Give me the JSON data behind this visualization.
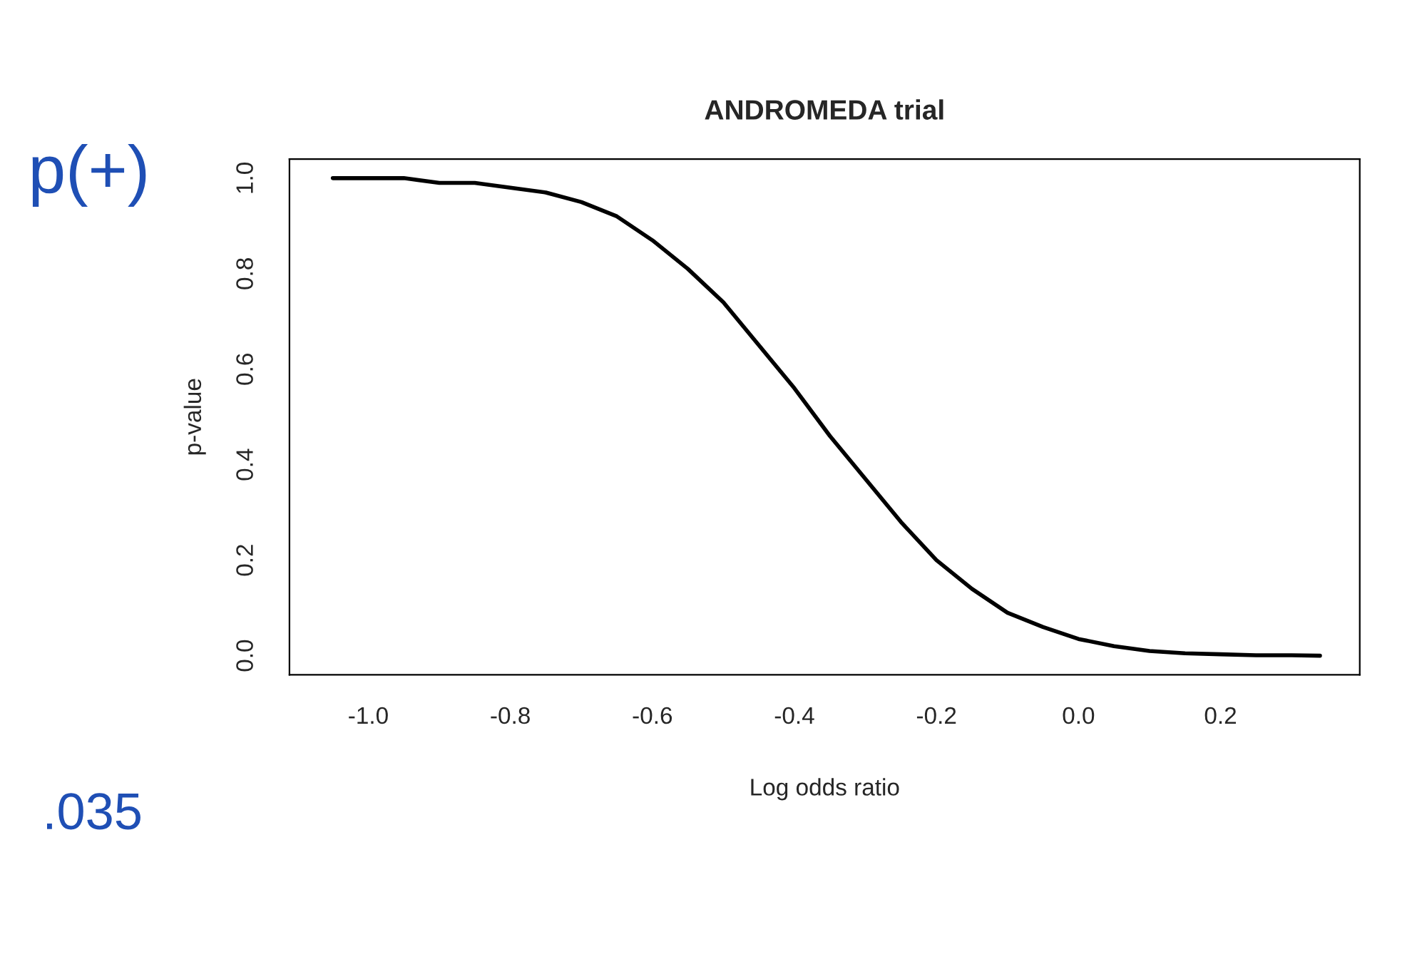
{
  "chart_data": {
    "type": "line",
    "title": "ANDROMEDA trial",
    "xlabel": "Log odds ratio",
    "ylabel": "p-value",
    "x": [
      -1.05,
      -1.0,
      -0.95,
      -0.9,
      -0.85,
      -0.8,
      -0.75,
      -0.7,
      -0.65,
      -0.6,
      -0.55,
      -0.5,
      -0.45,
      -0.4,
      -0.35,
      -0.3,
      -0.25,
      -0.2,
      -0.15,
      -0.1,
      -0.05,
      0.0,
      0.05,
      0.1,
      0.15,
      0.2,
      0.25,
      0.3,
      0.34
    ],
    "series": [
      {
        "color": "#000000",
        "values": [
          1.0,
          1.0,
          1.0,
          0.99,
          0.99,
          0.98,
          0.97,
          0.95,
          0.92,
          0.87,
          0.81,
          0.74,
          0.65,
          0.56,
          0.46,
          0.37,
          0.28,
          0.2,
          0.14,
          0.09,
          0.06,
          0.035,
          0.02,
          0.01,
          0.005,
          0.003,
          0.001,
          0.001,
          0.0
        ]
      }
    ],
    "xlim": [
      -1.111,
      0.396
    ],
    "ylim": [
      -0.04,
      1.04
    ],
    "xticks": [
      {
        "value": -1.0,
        "label": "-1.0"
      },
      {
        "value": -0.8,
        "label": "-0.8"
      },
      {
        "value": -0.6,
        "label": "-0.6"
      },
      {
        "value": -0.4,
        "label": "-0.4"
      },
      {
        "value": -0.2,
        "label": "-0.2"
      },
      {
        "value": 0.0,
        "label": "0.0"
      },
      {
        "value": 0.2,
        "label": "0.2"
      }
    ],
    "yticks": [
      {
        "value": 0.0,
        "label": "0.0"
      },
      {
        "value": 0.2,
        "label": "0.2"
      },
      {
        "value": 0.4,
        "label": "0.4"
      },
      {
        "value": 0.6,
        "label": "0.6"
      },
      {
        "value": 0.8,
        "label": "0.8"
      },
      {
        "value": 1.0,
        "label": "1.0"
      }
    ],
    "annotations": [
      "p(+)",
      ".035"
    ],
    "grid": false,
    "legend": false,
    "marker": "none",
    "line_style": "solid"
  }
}
